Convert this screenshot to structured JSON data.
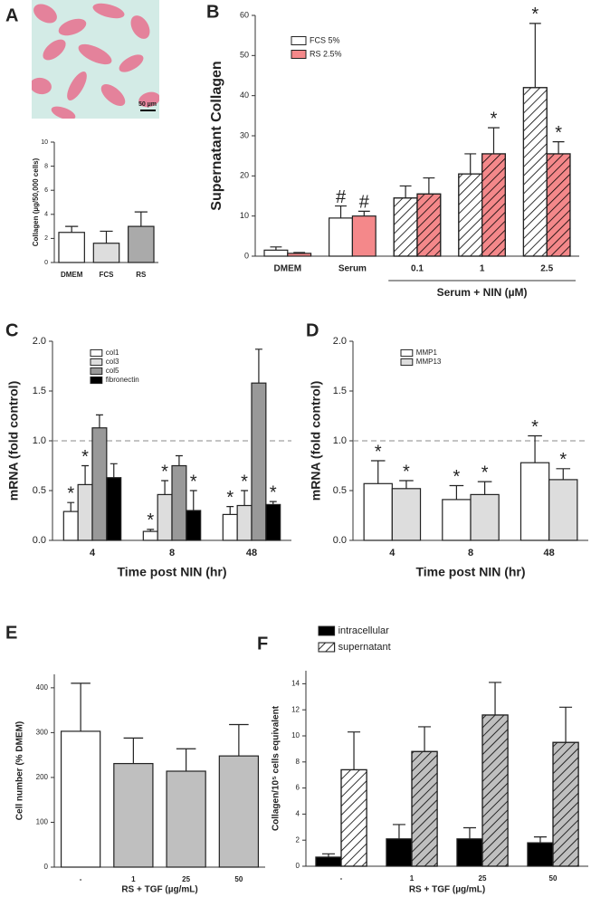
{
  "image": {
    "scale_label": "50 µm"
  },
  "chart_data": [
    {
      "label": "A",
      "type": "bar",
      "ylabel": "Collagen (µg/50,000 cells)",
      "categories": [
        "DMEM",
        "FCS",
        "RS"
      ],
      "series": [
        {
          "values": [
            2.5,
            1.6,
            3.0
          ],
          "errors": [
            0.5,
            1.0,
            1.2
          ],
          "colors": [
            "#ffffff",
            "#dddddd",
            "#aaaaaa"
          ]
        }
      ],
      "ylim": [
        0,
        10
      ],
      "yticks": [
        0,
        2,
        4,
        6,
        8,
        10
      ]
    },
    {
      "label": "B",
      "type": "bar",
      "ylabel": "Supernatant Collagen",
      "categories": [
        "DMEM",
        "Serum",
        "0.1",
        "1",
        "2.5"
      ],
      "group_label": "Serum + NIN (µM)",
      "series": [
        {
          "name": "FCS 5%",
          "color": "#ffffff",
          "values": [
            1.5,
            9.5,
            14.5,
            20.5,
            42
          ],
          "errors": [
            0.8,
            3,
            3,
            5,
            16
          ],
          "markers": [
            null,
            "#",
            null,
            null,
            "*"
          ],
          "hatch": [
            false,
            false,
            true,
            true,
            true
          ]
        },
        {
          "name": "RS 2.5%",
          "color": "#f4888a",
          "values": [
            0.7,
            10,
            15.5,
            25.5,
            25.5
          ],
          "errors": [
            0.2,
            1.2,
            4,
            6.5,
            3
          ],
          "markers": [
            null,
            "#",
            null,
            "*",
            "*"
          ],
          "hatch": [
            false,
            false,
            true,
            true,
            true
          ]
        }
      ],
      "ylim": [
        0,
        60
      ],
      "yticks": [
        0,
        10,
        20,
        30,
        40,
        50,
        60
      ],
      "legend": "upper left"
    },
    {
      "label": "C",
      "type": "bar",
      "ylabel": "mRNA (fold control)",
      "xlabel": "Time post NIN (hr)",
      "categories": [
        "4",
        "8",
        "48"
      ],
      "series": [
        {
          "name": "col1",
          "color": "#ffffff",
          "values": [
            0.29,
            0.09,
            0.26
          ],
          "errors": [
            0.09,
            0.02,
            0.08
          ],
          "markers": [
            "*",
            "*",
            "*"
          ]
        },
        {
          "name": "col3",
          "color": "#dddddd",
          "values": [
            0.56,
            0.46,
            0.35
          ],
          "errors": [
            0.19,
            0.14,
            0.15
          ],
          "markers": [
            "*",
            "*",
            "*"
          ]
        },
        {
          "name": "col5",
          "color": "#999999",
          "values": [
            1.13,
            0.75,
            1.58
          ],
          "errors": [
            0.13,
            0.1,
            0.34
          ]
        },
        {
          "name": "fibronectin",
          "color": "#000000",
          "values": [
            0.63,
            0.3,
            0.36
          ],
          "errors": [
            0.14,
            0.2,
            0.03
          ],
          "markers": [
            null,
            "*",
            "*"
          ]
        }
      ],
      "ylim": [
        0,
        2
      ],
      "yticks": [
        {
          "value": 0,
          "label": "0.0"
        },
        {
          "value": 0.5,
          "label": "0.5"
        },
        {
          "value": 1,
          "label": "1.0"
        },
        {
          "value": 1.5,
          "label": "1.5"
        },
        {
          "value": 2,
          "label": "2.0"
        }
      ],
      "reference_line": 1,
      "legend": "upper left"
    },
    {
      "label": "D",
      "type": "bar",
      "ylabel": "mRNA (fold control)",
      "xlabel": "Time post NIN (hr)",
      "categories": [
        "4",
        "8",
        "48"
      ],
      "series": [
        {
          "name": "MMP1",
          "color": "#ffffff",
          "values": [
            0.57,
            0.41,
            0.78
          ],
          "errors": [
            0.23,
            0.14,
            0.27
          ],
          "markers": [
            "*",
            "*",
            "*"
          ]
        },
        {
          "name": "MMP13",
          "color": "#dddddd",
          "values": [
            0.52,
            0.46,
            0.61
          ],
          "errors": [
            0.08,
            0.13,
            0.11
          ],
          "markers": [
            "*",
            "*",
            "*"
          ]
        }
      ],
      "ylim": [
        0,
        2
      ],
      "yticks": [
        {
          "value": 0,
          "label": "0.0"
        },
        {
          "value": 0.5,
          "label": "0.5"
        },
        {
          "value": 1,
          "label": "1.0"
        },
        {
          "value": 1.5,
          "label": "1.5"
        },
        {
          "value": 2,
          "label": "2.0"
        }
      ],
      "reference_line": 1,
      "legend": "upper left"
    },
    {
      "label": "E",
      "type": "bar",
      "ylabel": "Cell number (% DMEM)",
      "xlabel": "RS + TGF (µg/mL)",
      "categories": [
        "-",
        "1",
        "25",
        "50"
      ],
      "series": [
        {
          "values": [
            303,
            231,
            214,
            248
          ],
          "errors": [
            107,
            57,
            50,
            70
          ],
          "colors": [
            "#ffffff",
            "#bfbfbf",
            "#bfbfbf",
            "#bfbfbf"
          ]
        }
      ],
      "ylim": [
        0,
        430
      ],
      "yticks": [
        0,
        100,
        200,
        300,
        400
      ]
    },
    {
      "label": "F",
      "type": "bar",
      "ylabel": "Collagen/10⁵ cells equivalent",
      "xlabel": "RS + TGF (µg/mL)",
      "categories": [
        "-",
        "1",
        "25",
        "50"
      ],
      "series": [
        {
          "name": "intracellular",
          "color": "#000000",
          "values": [
            0.7,
            2.1,
            2.1,
            1.8
          ],
          "errors": [
            0.25,
            1.1,
            0.85,
            0.45
          ]
        },
        {
          "name": "supernatant",
          "colors": [
            "#ffffff",
            "#bfbfbf",
            "#bfbfbf",
            "#bfbfbf"
          ],
          "values": [
            7.4,
            8.8,
            11.6,
            9.5
          ],
          "errors": [
            2.9,
            1.9,
            2.5,
            2.7
          ],
          "hatch": true
        }
      ],
      "ylim": [
        0,
        15
      ],
      "yticks": [
        0,
        2,
        4,
        6,
        8,
        10,
        12,
        14
      ],
      "legend": "upper left"
    }
  ]
}
